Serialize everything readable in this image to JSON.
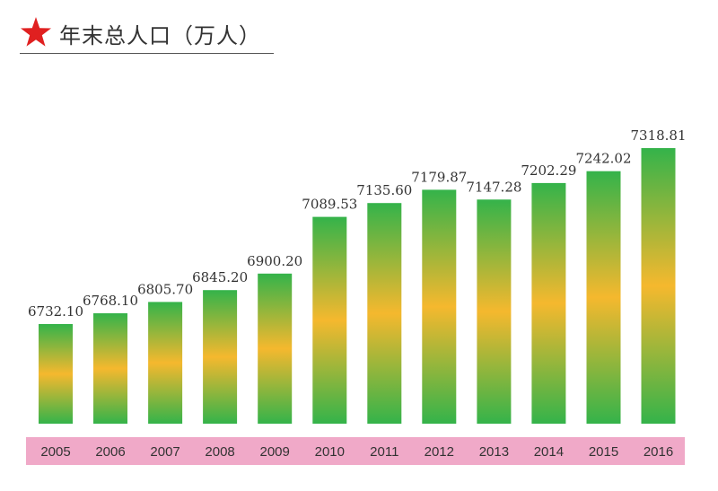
{
  "header": {
    "title": "年末总人口（万人）",
    "star_icon": "star-icon",
    "star_color": "#e02020"
  },
  "colors": {
    "bar_green": "#34b34a",
    "bar_orange": "#f5b82e",
    "category_band": "#f0a9c8"
  },
  "chart_data": {
    "type": "bar",
    "title": "年末总人口（万人）",
    "categories": [
      "2005",
      "2006",
      "2007",
      "2008",
      "2009",
      "2010",
      "2011",
      "2012",
      "2013",
      "2014",
      "2015",
      "2016"
    ],
    "values": [
      6732.1,
      6768.1,
      6805.7,
      6845.2,
      6900.2,
      7089.53,
      7135.6,
      7179.87,
      7147.28,
      7202.29,
      7242.02,
      7318.81
    ],
    "value_labels": [
      "6732.10",
      "6768.10",
      "6805.70",
      "6845.20",
      "6900.20",
      "7089.53",
      "7135.60",
      "7179.87",
      "7147.28",
      "7202.29",
      "7242.02",
      "7318.81"
    ],
    "xlabel": "",
    "ylabel": "",
    "grid": false,
    "legend": "none"
  }
}
